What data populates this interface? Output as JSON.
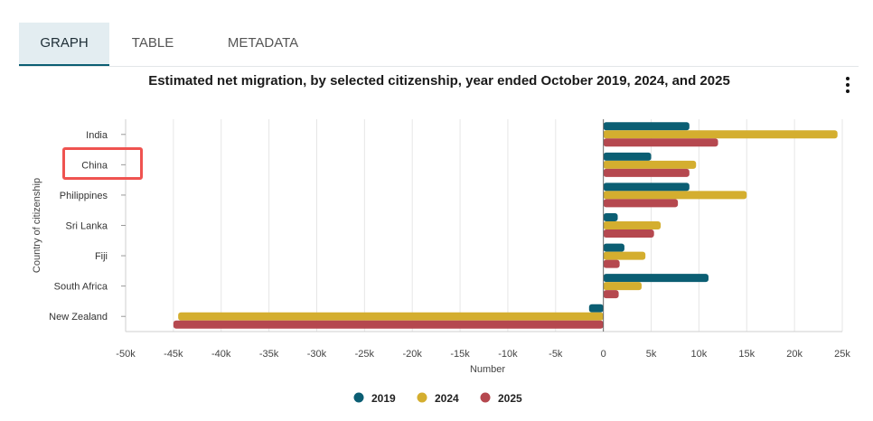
{
  "tabs": [
    {
      "label": "GRAPH",
      "active": true
    },
    {
      "label": "TABLE",
      "active": false
    },
    {
      "label": "METADATA",
      "active": false
    }
  ],
  "menu_icon": "kebab-menu-icon",
  "highlight_color": "#ef5350",
  "chart_data": {
    "type": "bar",
    "orientation": "horizontal",
    "title": "Estimated net migration, by selected citizenship, year ended October 2019, 2024, and 2025",
    "xlabel": "Number",
    "ylabel": "Country of citizenship",
    "categories": [
      "India",
      "China",
      "Philippines",
      "Sri Lanka",
      "Fiji",
      "South Africa",
      "New Zealand"
    ],
    "series": [
      {
        "name": "2019",
        "color": "#0b5e73",
        "values": [
          9000,
          5000,
          9000,
          1500,
          2200,
          11000,
          -1500
        ]
      },
      {
        "name": "2024",
        "color": "#d4ae2f",
        "values": [
          24500,
          9700,
          15000,
          6000,
          4400,
          4000,
          -44500
        ]
      },
      {
        "name": "2025",
        "color": "#b5484f",
        "values": [
          12000,
          9000,
          7800,
          5300,
          1700,
          1600,
          -45000
        ]
      }
    ],
    "xlim": [
      -50000,
      25000
    ],
    "xticks": [
      -50000,
      -45000,
      -40000,
      -35000,
      -30000,
      -25000,
      -20000,
      -15000,
      -10000,
      -5000,
      0,
      5000,
      10000,
      15000,
      20000,
      25000
    ],
    "xtick_labels": [
      "-50k",
      "-45k",
      "-40k",
      "-35k",
      "-30k",
      "-25k",
      "-20k",
      "-15k",
      "-10k",
      "-5k",
      "0",
      "5k",
      "10k",
      "15k",
      "20k",
      "25k"
    ],
    "grid": true,
    "legend_position": "bottom-center",
    "highlighted_category": "China"
  }
}
